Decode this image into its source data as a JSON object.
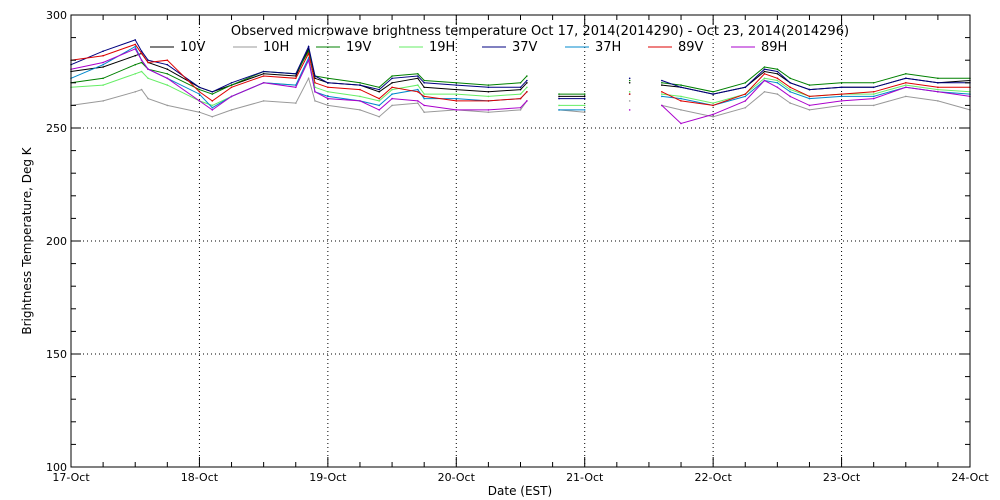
{
  "chart_data": {
    "type": "line",
    "title": "Observed microwave brightness temperature Oct 17, 2014(2014290) - Oct 23, 2014(2014296)",
    "xlabel": "Date (EST)",
    "ylabel": "Brightness Temperature, Deg K",
    "x_ticks": [
      "17-Oct",
      "18-Oct",
      "19-Oct",
      "20-Oct",
      "21-Oct",
      "22-Oct",
      "23-Oct",
      "24-Oct"
    ],
    "y_ticks": [
      "100",
      "150",
      "200",
      "250",
      "300"
    ],
    "xlim": [
      0,
      7
    ],
    "ylim": [
      100,
      300
    ],
    "x_unit": "days since 17-Oct 00:00 EST",
    "grid": true,
    "legend_position": "top",
    "x": [
      0,
      0.25,
      0.5,
      0.55,
      0.6,
      0.75,
      1.0,
      1.1,
      1.25,
      1.5,
      1.75,
      1.85,
      1.9,
      2.0,
      2.25,
      2.4,
      2.5,
      2.7,
      2.75,
      3.0,
      3.25,
      3.5,
      3.55,
      3.75,
      3.8,
      4.0,
      4.1,
      4.2,
      4.35,
      4.4,
      4.5,
      4.6,
      4.75,
      5.0,
      5.25,
      5.4,
      5.5,
      5.6,
      5.75,
      6.0,
      6.25,
      6.5,
      6.75,
      7.0
    ],
    "series": [
      {
        "name": "10V",
        "color": "#000000",
        "values": [
          275,
          277,
          282,
          283,
          279,
          276,
          268,
          266,
          269,
          274,
          273,
          285,
          272,
          270,
          269,
          266,
          270,
          272,
          268,
          267,
          266,
          267,
          270,
          null,
          264,
          264,
          null,
          null,
          270,
          null,
          null,
          269,
          268,
          265,
          268,
          275,
          274,
          270,
          267,
          268,
          268,
          272,
          270,
          271
        ]
      },
      {
        "name": "10H",
        "color": "#999999",
        "values": [
          260,
          262,
          266,
          267,
          263,
          260,
          257,
          255,
          258,
          262,
          261,
          272,
          262,
          260,
          258,
          255,
          260,
          261,
          257,
          258,
          257,
          258,
          262,
          null,
          258,
          257,
          null,
          null,
          262,
          null,
          null,
          260,
          258,
          255,
          259,
          266,
          265,
          261,
          258,
          260,
          260,
          264,
          262,
          258
        ]
      },
      {
        "name": "19V",
        "color": "#008000",
        "values": [
          270,
          272,
          278,
          279,
          276,
          274,
          267,
          265,
          269,
          275,
          274,
          284,
          273,
          272,
          270,
          268,
          273,
          274,
          271,
          270,
          269,
          270,
          273,
          null,
          265,
          265,
          null,
          null,
          271,
          null,
          null,
          270,
          269,
          266,
          270,
          277,
          276,
          272,
          269,
          270,
          270,
          274,
          272,
          272
        ]
      },
      {
        "name": "19H",
        "color": "#66ee66",
        "values": [
          268,
          269,
          274,
          275,
          272,
          269,
          262,
          260,
          264,
          270,
          269,
          280,
          268,
          266,
          264,
          262,
          267,
          269,
          265,
          265,
          264,
          265,
          268,
          null,
          260,
          260,
          null,
          null,
          266,
          null,
          null,
          265,
          264,
          261,
          265,
          272,
          271,
          267,
          264,
          265,
          265,
          269,
          267,
          266
        ]
      },
      {
        "name": "37V",
        "color": "#000080",
        "values": [
          278,
          284,
          289,
          284,
          280,
          278,
          268,
          266,
          270,
          275,
          274,
          286,
          273,
          270,
          269,
          267,
          272,
          273,
          270,
          269,
          268,
          268,
          271,
          null,
          263,
          263,
          null,
          null,
          272,
          null,
          null,
          271,
          268,
          265,
          268,
          276,
          275,
          270,
          267,
          268,
          268,
          272,
          270,
          270
        ]
      },
      {
        "name": "37H",
        "color": "#0088cc",
        "values": [
          272,
          278,
          286,
          280,
          276,
          272,
          265,
          259,
          264,
          270,
          269,
          281,
          266,
          264,
          262,
          260,
          265,
          267,
          263,
          263,
          262,
          263,
          266,
          null,
          258,
          258,
          null,
          null,
          265,
          null,
          null,
          264,
          263,
          260,
          264,
          271,
          270,
          266,
          263,
          264,
          264,
          268,
          266,
          265
        ]
      },
      {
        "name": "89V",
        "color": "#dd0000",
        "values": [
          280,
          282,
          287,
          283,
          279,
          280,
          266,
          262,
          268,
          273,
          272,
          283,
          270,
          268,
          267,
          263,
          268,
          266,
          264,
          262,
          262,
          263,
          266,
          null,
          null,
          null,
          null,
          null,
          265,
          null,
          null,
          266,
          262,
          260,
          265,
          274,
          272,
          268,
          264,
          265,
          266,
          270,
          268,
          268
        ]
      },
      {
        "name": "89H",
        "color": "#aa00cc",
        "values": [
          276,
          279,
          285,
          280,
          276,
          272,
          262,
          258,
          264,
          270,
          268,
          280,
          266,
          263,
          262,
          258,
          263,
          262,
          260,
          258,
          258,
          259,
          262,
          null,
          null,
          null,
          null,
          null,
          258,
          null,
          null,
          260,
          252,
          256,
          262,
          271,
          268,
          264,
          260,
          262,
          263,
          268,
          266,
          264
        ]
      }
    ]
  }
}
